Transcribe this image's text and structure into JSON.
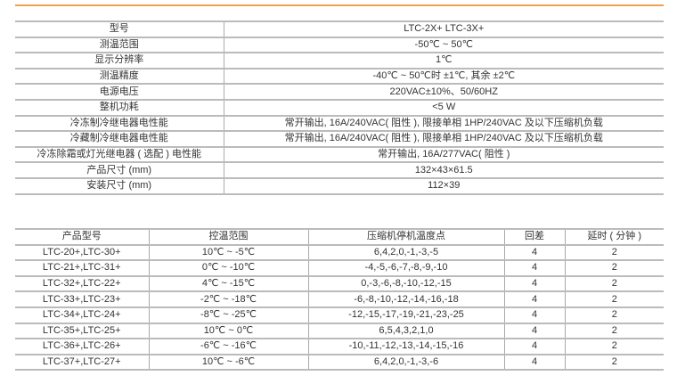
{
  "accent_color": "#f0a050",
  "spec_table": {
    "rows": [
      {
        "label": "型号",
        "value": "LTC-2X+   LTC-3X+"
      },
      {
        "label": "测温范围",
        "value": "-50℃ ~ 50℃"
      },
      {
        "label": "显示分辨率",
        "value": "1℃"
      },
      {
        "label": "测温精度",
        "value": "-40℃ ~ 50℃时 ±1℃, 其余 ±2℃"
      },
      {
        "label": "电源电压",
        "value": "220VAC±10%、50/60HZ"
      },
      {
        "label": "整机功耗",
        "value": "<5 W"
      },
      {
        "label": "冷冻制冷继电器电性能",
        "value": "常开输出, 16A/240VAC( 阻性 ), 限接单相 1HP/240VAC 及以下压缩机负载"
      },
      {
        "label": "冷藏制冷继电器电性能",
        "value": "常开输出, 16A/240VAC( 阻性 ), 限接单相 1HP/240VAC 及以下压缩机负载"
      },
      {
        "label": "冷冻除霜或灯光继电器 ( 选配 ) 电性能",
        "value": "常开输出, 16A/277VAC( 阻性 )"
      },
      {
        "label": "产品尺寸 (mm)",
        "value": "132×43×61.5"
      },
      {
        "label": "安装尺寸 (mm)",
        "value": "112×39"
      }
    ]
  },
  "model_table": {
    "headers": [
      "产品型号",
      "控温范围",
      "压缩机停机温度点",
      "回差",
      "延时 ( 分钟 )"
    ],
    "rows": [
      [
        "LTC-20+,LTC-30+",
        "10℃ ~ -5℃",
        "6,4,2,0,-1,-3,-5",
        "4",
        "2"
      ],
      [
        "LTC-21+,LTC-31+",
        "0℃ ~ -10℃",
        "-4,-5,-6,-7,-8,-9,-10",
        "4",
        "2"
      ],
      [
        "LTC-32+,LTC-22+",
        "4℃ ~ -15℃",
        "0,-3,-6,-8,-10,-12,-15",
        "4",
        "2"
      ],
      [
        "LTC-33+,LTC-23+",
        "-2℃ ~ -18℃",
        "-6,-8,-10,-12,-14,-16,-18",
        "4",
        "2"
      ],
      [
        "LTC-34+,LTC-24+",
        "-8℃ ~ -25℃",
        "-12,-15,-17,-19,-21,-23,-25",
        "4",
        "2"
      ],
      [
        "LTC-35+,LTC-25+",
        "10℃ ~ 0℃",
        "6,5,4,3,2,1,0",
        "4",
        "2"
      ],
      [
        "LTC-36+,LTC-26+",
        "-6℃ ~ -16℃",
        "-10,-11,-12,-13,-14,-15,-16",
        "4",
        "2"
      ],
      [
        "LTC-37+,LTC-27+",
        "10℃ ~ -6℃",
        "6,4,2,0,-1,-3,-6",
        "4",
        "2"
      ]
    ]
  }
}
